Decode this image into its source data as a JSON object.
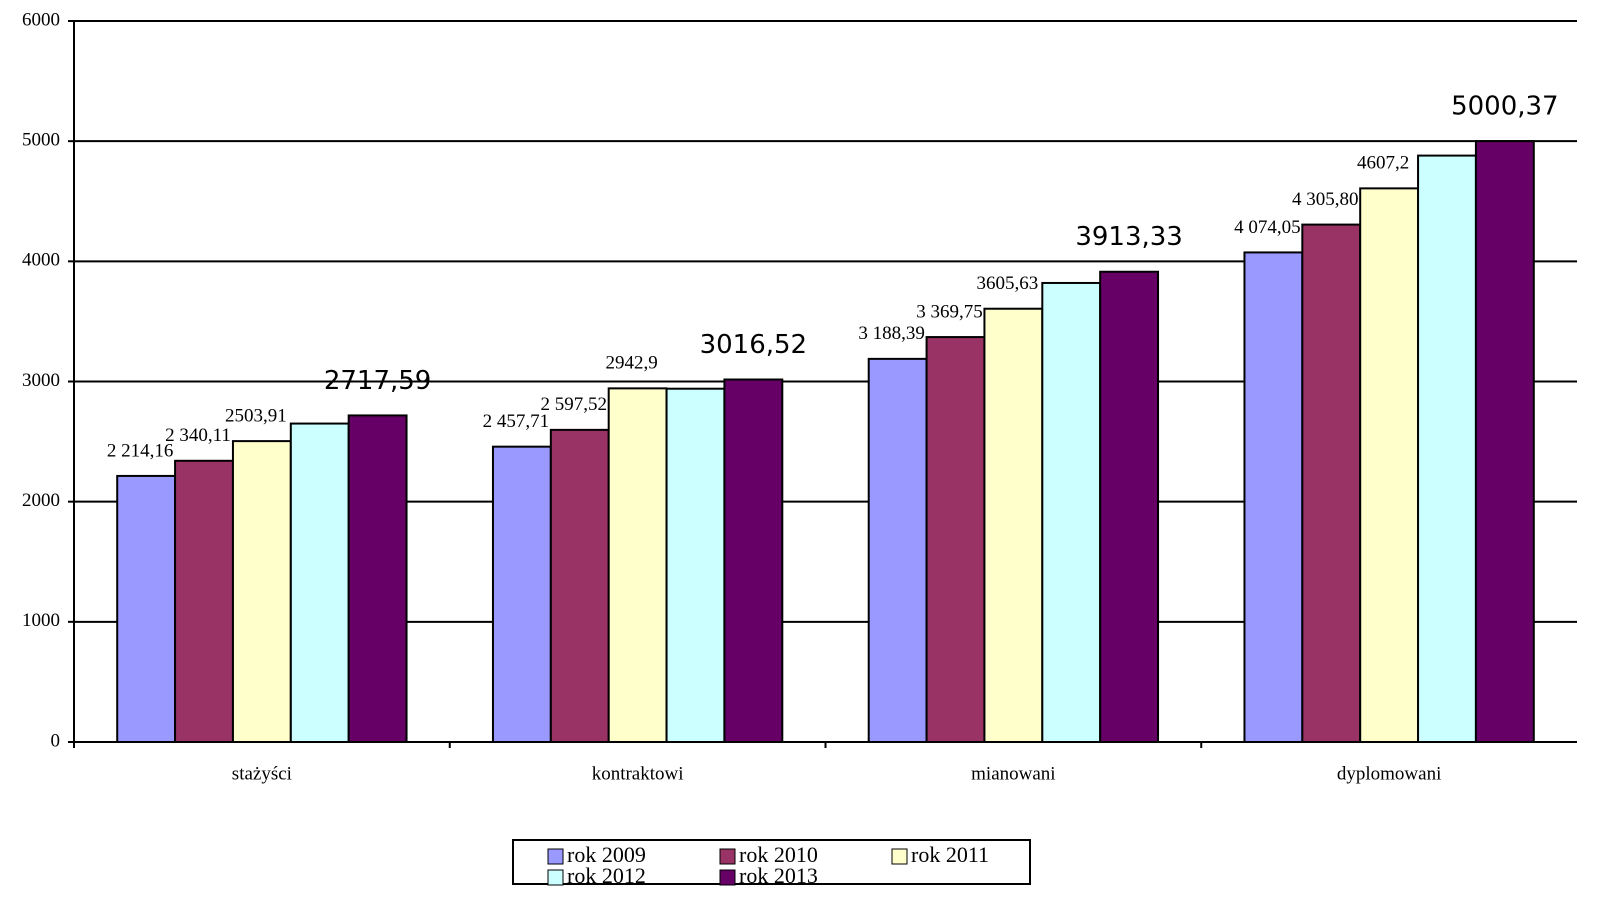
{
  "chart_data": {
    "type": "bar",
    "categories": [
      "stażyści",
      "kontraktowi",
      "mianowani",
      "dyplomowani"
    ],
    "series": [
      {
        "name": "rok 2009",
        "color": "#9999ff",
        "values": [
          2214.16,
          2457.71,
          3188.39,
          4074.05
        ],
        "value_labels": [
          "2 214,16",
          "2 457,71",
          "3 188,39",
          "4 074,05"
        ]
      },
      {
        "name": "rok 2010",
        "color": "#993366",
        "values": [
          2340.11,
          2597.52,
          3369.75,
          4305.8
        ],
        "value_labels": [
          "2 340,11",
          "2 597,52",
          "3 369,75",
          "4 305,80"
        ]
      },
      {
        "name": "rok 2011",
        "color": "#ffffcc",
        "values": [
          2503.91,
          2942.9,
          3605.63,
          4607.2
        ],
        "value_labels": [
          "2503,91",
          "2942,9",
          "3605,63",
          "4607,2"
        ]
      },
      {
        "name": "rok 2012",
        "color": "#ccffff",
        "values": [
          2650,
          2940,
          3820,
          4880
        ]
      },
      {
        "name": "rok 2013",
        "color": "#660066",
        "values": [
          2717.59,
          3016.52,
          3913.33,
          5000.37
        ],
        "value_labels": [
          "2717,59",
          "3016,52",
          "3913,33",
          "5000,37"
        ]
      }
    ],
    "ylim": [
      0,
      6000
    ],
    "yticks": [
      0,
      1000,
      2000,
      3000,
      4000,
      5000,
      6000
    ],
    "grid": true,
    "legend": "bottom"
  }
}
